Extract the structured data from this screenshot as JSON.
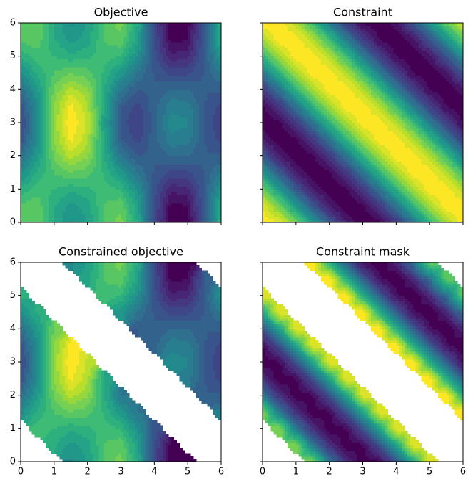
{
  "chart_data": [
    {
      "type": "contour",
      "title": "Objective",
      "colormap": "viridis",
      "show_xticklabels": false,
      "show_yticklabels": true,
      "x": [
        0,
        0.5,
        1,
        1.5,
        2,
        2.5,
        3,
        3.5,
        4,
        4.5,
        5,
        5.5,
        6
      ],
      "y": [
        0,
        0.5,
        1,
        1.5,
        2,
        2.5,
        3,
        3.5,
        4,
        4.5,
        5,
        5.5,
        6
      ],
      "xlim": [
        0,
        6
      ],
      "ylim": [
        0,
        6
      ],
      "xticks": [
        0,
        1,
        2,
        3,
        4,
        5,
        6
      ],
      "yticks": [
        0,
        1,
        2,
        3,
        4,
        5,
        6
      ],
      "z": [
        [
          1.0,
          1.02,
          0.42,
          0.01,
          0.26,
          0.88,
          1.1,
          0.4,
          -0.91,
          -1.89,
          -1.8,
          -0.71,
          0.56
        ],
        [
          0.87,
          0.95,
          0.47,
          0.14,
          0.34,
          0.84,
          0.98,
          0.3,
          -0.89,
          -1.77,
          -1.69,
          -0.71,
          0.45
        ],
        [
          0.5,
          0.75,
          0.63,
          0.5,
          0.58,
          0.74,
          0.62,
          0.03,
          -0.84,
          -1.44,
          -1.38,
          -0.71,
          0.14
        ],
        [
          0.0,
          0.48,
          0.84,
          1.0,
          0.91,
          0.6,
          0.14,
          -0.35,
          -0.76,
          -0.98,
          -0.96,
          -0.71,
          -0.28
        ],
        [
          -0.5,
          0.21,
          1.05,
          1.5,
          1.24,
          0.46,
          -0.34,
          -0.73,
          -0.68,
          -0.52,
          -0.54,
          -0.71,
          -0.7
        ],
        [
          -0.87,
          0.01,
          1.21,
          1.86,
          1.48,
          0.36,
          -0.7,
          -1.0,
          -0.63,
          -0.19,
          -0.23,
          -0.71,
          -1.01
        ],
        [
          -1.0,
          -0.06,
          1.26,
          1.99,
          1.56,
          0.32,
          -0.82,
          -1.1,
          -0.61,
          -0.07,
          -0.12,
          -0.71,
          -1.12
        ],
        [
          -0.87,
          0.01,
          1.21,
          1.86,
          1.48,
          0.36,
          -0.7,
          -1.0,
          -0.63,
          -0.19,
          -0.23,
          -0.71,
          -1.01
        ],
        [
          -0.5,
          0.21,
          1.05,
          1.5,
          1.24,
          0.46,
          -0.34,
          -0.73,
          -0.68,
          -0.52,
          -0.54,
          -0.71,
          -0.7
        ],
        [
          0.0,
          0.48,
          0.84,
          1.0,
          0.91,
          0.6,
          0.14,
          -0.35,
          -0.76,
          -0.98,
          -0.96,
          -0.71,
          -0.28
        ],
        [
          0.5,
          0.75,
          0.63,
          0.5,
          0.58,
          0.74,
          0.62,
          0.03,
          -0.84,
          -1.44,
          -1.38,
          -0.71,
          0.14
        ],
        [
          0.87,
          0.95,
          0.47,
          0.14,
          0.34,
          0.84,
          0.98,
          0.3,
          -0.89,
          -1.77,
          -1.69,
          -0.71,
          0.45
        ],
        [
          1.0,
          1.02,
          0.42,
          0.01,
          0.26,
          0.88,
          1.1,
          0.4,
          -0.91,
          -1.89,
          -1.8,
          -0.71,
          0.56
        ]
      ]
    },
    {
      "type": "contour",
      "title": "Constraint",
      "colormap": "viridis",
      "show_xticklabels": false,
      "show_yticklabels": false,
      "x": [
        0,
        0.5,
        1,
        1.5,
        2,
        2.5,
        3,
        3.5,
        4,
        4.5,
        5,
        5.5,
        6
      ],
      "y": [
        0,
        0.5,
        1,
        1.5,
        2,
        2.5,
        3,
        3.5,
        4,
        4.5,
        5,
        5.5,
        6
      ],
      "xlim": [
        0,
        6
      ],
      "ylim": [
        0,
        6
      ],
      "xticks": [
        0,
        1,
        2,
        3,
        4,
        5,
        6
      ],
      "yticks": [
        0,
        1,
        2,
        3,
        4,
        5,
        6
      ],
      "z": [
        [
          1.0,
          0.88,
          0.54,
          0.07,
          -0.42,
          -0.8,
          -0.99,
          -0.94,
          -0.65,
          -0.21,
          0.28,
          0.71,
          0.96
        ],
        [
          0.88,
          0.54,
          0.07,
          -0.42,
          -0.8,
          -0.99,
          -0.94,
          -0.65,
          -0.21,
          0.28,
          0.71,
          0.96,
          0.98
        ],
        [
          0.54,
          0.07,
          -0.42,
          -0.8,
          -0.99,
          -0.94,
          -0.65,
          -0.21,
          0.28,
          0.71,
          0.96,
          0.98,
          0.75
        ],
        [
          0.07,
          -0.42,
          -0.8,
          -0.99,
          -0.94,
          -0.65,
          -0.21,
          0.28,
          0.71,
          0.96,
          0.98,
          0.75,
          0.35
        ],
        [
          -0.42,
          -0.8,
          -0.99,
          -0.94,
          -0.65,
          -0.21,
          0.28,
          0.71,
          0.96,
          0.98,
          0.75,
          0.35,
          -0.15
        ],
        [
          -0.8,
          -0.99,
          -0.94,
          -0.65,
          -0.21,
          0.28,
          0.71,
          0.96,
          0.98,
          0.75,
          0.35,
          -0.15,
          -0.6
        ],
        [
          -0.99,
          -0.94,
          -0.65,
          -0.21,
          0.28,
          0.71,
          0.96,
          0.98,
          0.75,
          0.35,
          -0.15,
          -0.6,
          -0.91
        ],
        [
          -0.94,
          -0.65,
          -0.21,
          0.28,
          0.71,
          0.96,
          0.98,
          0.75,
          0.35,
          -0.15,
          -0.6,
          -0.91,
          -1.0
        ],
        [
          -0.65,
          -0.21,
          0.28,
          0.71,
          0.96,
          0.98,
          0.75,
          0.35,
          -0.15,
          -0.6,
          -0.91,
          -1.0,
          -0.84
        ],
        [
          -0.21,
          0.28,
          0.71,
          0.96,
          0.98,
          0.75,
          0.35,
          -0.15,
          -0.6,
          -0.91,
          -1.0,
          -0.84,
          -0.48
        ],
        [
          0.28,
          0.71,
          0.96,
          0.98,
          0.75,
          0.35,
          -0.15,
          -0.6,
          -0.91,
          -1.0,
          -0.84,
          -0.48,
          0.0
        ],
        [
          0.71,
          0.96,
          0.98,
          0.75,
          0.35,
          -0.15,
          -0.6,
          -0.91,
          -1.0,
          -0.84,
          -0.48,
          0.0,
          0.48
        ],
        [
          0.96,
          0.98,
          0.75,
          0.35,
          -0.15,
          -0.6,
          -0.91,
          -1.0,
          -0.84,
          -0.48,
          0.0,
          0.48,
          0.84
        ]
      ]
    },
    {
      "type": "contour",
      "title": "Constrained objective",
      "colormap": "viridis",
      "show_xticklabels": true,
      "show_yticklabels": true,
      "x": [
        0,
        0.5,
        1,
        1.5,
        2,
        2.5,
        3,
        3.5,
        4,
        4.5,
        5,
        5.5,
        6
      ],
      "y": [
        0,
        0.5,
        1,
        1.5,
        2,
        2.5,
        3,
        3.5,
        4,
        4.5,
        5,
        5.5,
        6
      ],
      "xlim": [
        0,
        6
      ],
      "ylim": [
        0,
        6
      ],
      "xticks": [
        0,
        1,
        2,
        3,
        4,
        5,
        6
      ],
      "yticks": [
        0,
        1,
        2,
        3,
        4,
        5,
        6
      ],
      "z": [
        [
          null,
          null,
          null,
          0.01,
          0.26,
          0.88,
          1.1,
          0.4,
          -0.91,
          -1.89,
          -1.8,
          null,
          null
        ],
        [
          null,
          null,
          0.47,
          0.14,
          0.34,
          0.84,
          0.98,
          0.3,
          -0.89,
          -1.77,
          null,
          null,
          null
        ],
        [
          null,
          0.75,
          0.63,
          0.5,
          0.58,
          0.74,
          0.62,
          0.03,
          -0.84,
          null,
          null,
          null,
          null
        ],
        [
          0.0,
          0.48,
          0.84,
          1.0,
          0.91,
          0.6,
          0.14,
          -0.35,
          null,
          null,
          null,
          null,
          -0.28
        ],
        [
          -0.5,
          0.21,
          1.05,
          1.5,
          1.24,
          0.46,
          -0.34,
          null,
          null,
          null,
          null,
          -0.71,
          -0.7
        ],
        [
          -0.87,
          0.01,
          1.21,
          1.86,
          1.48,
          0.36,
          null,
          null,
          null,
          null,
          -0.23,
          -0.71,
          -1.01
        ],
        [
          -1.0,
          -0.06,
          1.26,
          1.99,
          1.56,
          null,
          null,
          null,
          null,
          -0.07,
          -0.12,
          -0.71,
          -1.12
        ],
        [
          -0.87,
          0.01,
          1.21,
          1.86,
          null,
          null,
          null,
          null,
          -0.63,
          -0.19,
          -0.23,
          -0.71,
          -1.01
        ],
        [
          -0.5,
          0.21,
          1.05,
          null,
          null,
          null,
          null,
          -0.73,
          -0.68,
          -0.52,
          -0.54,
          -0.71,
          -0.7
        ],
        [
          0.0,
          0.48,
          null,
          null,
          null,
          null,
          0.14,
          -0.35,
          -0.76,
          -0.98,
          -0.96,
          -0.71,
          -0.28
        ],
        [
          0.5,
          null,
          null,
          null,
          null,
          0.74,
          0.62,
          0.03,
          -0.84,
          -1.44,
          -1.38,
          -0.71,
          0.14
        ],
        [
          null,
          null,
          null,
          null,
          0.34,
          0.84,
          0.98,
          0.3,
          -0.89,
          -1.77,
          -1.69,
          -0.71,
          null
        ],
        [
          null,
          null,
          null,
          0.01,
          0.26,
          0.88,
          1.1,
          0.4,
          -0.91,
          -1.89,
          -1.8,
          null,
          null
        ]
      ]
    },
    {
      "type": "contour",
      "title": "Constraint mask",
      "colormap": "viridis",
      "show_xticklabels": true,
      "show_yticklabels": false,
      "x": [
        0,
        0.5,
        1,
        1.5,
        2,
        2.5,
        3,
        3.5,
        4,
        4.5,
        5,
        5.5,
        6
      ],
      "y": [
        0,
        0.5,
        1,
        1.5,
        2,
        2.5,
        3,
        3.5,
        4,
        4.5,
        5,
        5.5,
        6
      ],
      "xlim": [
        0,
        6
      ],
      "ylim": [
        0,
        6
      ],
      "xticks": [
        0,
        1,
        2,
        3,
        4,
        5,
        6
      ],
      "yticks": [
        0,
        1,
        2,
        3,
        4,
        5,
        6
      ],
      "z": [
        [
          null,
          null,
          null,
          0.07,
          -0.42,
          -0.8,
          -0.99,
          -0.94,
          -0.65,
          -0.21,
          0.28,
          null,
          null
        ],
        [
          null,
          null,
          0.07,
          -0.42,
          -0.8,
          -0.99,
          -0.94,
          -0.65,
          -0.21,
          0.28,
          null,
          null,
          null
        ],
        [
          null,
          0.07,
          -0.42,
          -0.8,
          -0.99,
          -0.94,
          -0.65,
          -0.21,
          0.28,
          null,
          null,
          null,
          null
        ],
        [
          0.07,
          -0.42,
          -0.8,
          -0.99,
          -0.94,
          -0.65,
          -0.21,
          0.28,
          null,
          null,
          null,
          null,
          0.35
        ],
        [
          -0.42,
          -0.8,
          -0.99,
          -0.94,
          -0.65,
          -0.21,
          0.28,
          null,
          null,
          null,
          null,
          0.35,
          -0.15
        ],
        [
          -0.8,
          -0.99,
          -0.94,
          -0.65,
          -0.21,
          0.28,
          null,
          null,
          null,
          null,
          0.35,
          -0.15,
          -0.6
        ],
        [
          -0.99,
          -0.94,
          -0.65,
          -0.21,
          0.28,
          null,
          null,
          null,
          null,
          0.35,
          -0.15,
          -0.6,
          -0.91
        ],
        [
          -0.94,
          -0.65,
          -0.21,
          0.28,
          null,
          null,
          null,
          null,
          0.35,
          -0.15,
          -0.6,
          -0.91,
          -1.0
        ],
        [
          -0.65,
          -0.21,
          0.28,
          null,
          null,
          null,
          null,
          0.35,
          -0.15,
          -0.6,
          -0.91,
          -1.0,
          -0.84
        ],
        [
          -0.21,
          0.28,
          null,
          null,
          null,
          null,
          0.35,
          -0.15,
          -0.6,
          -0.91,
          -1.0,
          -0.84,
          -0.48
        ],
        [
          0.28,
          null,
          null,
          null,
          null,
          0.35,
          -0.15,
          -0.6,
          -0.91,
          -1.0,
          -0.84,
          -0.48,
          0.0
        ],
        [
          null,
          null,
          null,
          null,
          0.35,
          -0.15,
          -0.6,
          -0.91,
          -1.0,
          -0.84,
          -0.48,
          0.0,
          null
        ],
        [
          null,
          null,
          null,
          0.35,
          -0.15,
          -0.6,
          -0.91,
          -1.0,
          -0.84,
          -0.48,
          0.0,
          null,
          null
        ]
      ]
    }
  ]
}
